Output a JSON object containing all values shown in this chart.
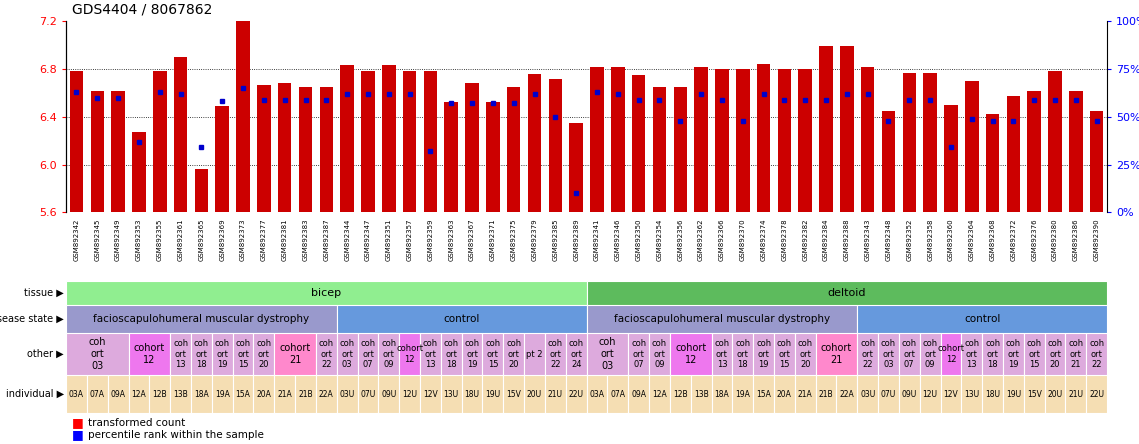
{
  "title": "GDS4404 / 8067862",
  "ylim": [
    5.6,
    7.2
  ],
  "yticks": [
    5.6,
    6.0,
    6.4,
    6.8,
    7.2
  ],
  "y2lim": [
    0,
    100
  ],
  "y2ticks": [
    0,
    25,
    50,
    75,
    100
  ],
  "bar_color": "#CC0000",
  "dot_color": "#0000CC",
  "samples": [
    "GSM892342",
    "GSM892345",
    "GSM892349",
    "GSM892353",
    "GSM892355",
    "GSM892361",
    "GSM892365",
    "GSM892369",
    "GSM892373",
    "GSM892377",
    "GSM892381",
    "GSM892383",
    "GSM892387",
    "GSM892344",
    "GSM892347",
    "GSM892351",
    "GSM892357",
    "GSM892359",
    "GSM892363",
    "GSM892367",
    "GSM892371",
    "GSM892375",
    "GSM892379",
    "GSM892385",
    "GSM892389",
    "GSM892341",
    "GSM892346",
    "GSM892350",
    "GSM892354",
    "GSM892356",
    "GSM892362",
    "GSM892366",
    "GSM892370",
    "GSM892374",
    "GSM892378",
    "GSM892382",
    "GSM892384",
    "GSM892388",
    "GSM892343",
    "GSM892348",
    "GSM892352",
    "GSM892358",
    "GSM892360",
    "GSM892364",
    "GSM892368",
    "GSM892372",
    "GSM892376",
    "GSM892380",
    "GSM892386",
    "GSM892390"
  ],
  "bar_heights": [
    6.78,
    6.62,
    6.62,
    6.27,
    6.78,
    6.9,
    5.96,
    6.49,
    7.2,
    6.67,
    6.68,
    6.65,
    6.65,
    6.83,
    6.78,
    6.83,
    6.78,
    6.78,
    6.52,
    6.68,
    6.52,
    6.65,
    6.76,
    6.72,
    6.35,
    6.82,
    6.82,
    6.75,
    6.65,
    6.65,
    6.82,
    6.8,
    6.8,
    6.84,
    6.8,
    6.8,
    6.99,
    6.99,
    6.82,
    6.45,
    6.77,
    6.77,
    6.5,
    6.7,
    6.42,
    6.57,
    6.62,
    6.78,
    6.62,
    6.45
  ],
  "dot_percentiles": [
    63,
    60,
    60,
    37,
    63,
    62,
    34,
    58,
    65,
    59,
    59,
    59,
    59,
    62,
    62,
    62,
    62,
    32,
    57,
    57,
    57,
    57,
    62,
    50,
    10,
    63,
    62,
    59,
    59,
    48,
    62,
    59,
    48,
    62,
    59,
    59,
    59,
    62,
    62,
    48,
    59,
    59,
    34,
    49,
    48,
    48,
    59,
    59,
    59,
    48
  ],
  "tissue_sections": [
    {
      "label": "bicep",
      "start": 0,
      "end": 25,
      "color": "#90EE90"
    },
    {
      "label": "deltoid",
      "start": 25,
      "end": 50,
      "color": "#5DBB5D"
    }
  ],
  "disease_sections": [
    {
      "label": "facioscapulohumeral muscular dystrophy",
      "start": 0,
      "end": 13,
      "color": "#9999CC"
    },
    {
      "label": "control",
      "start": 13,
      "end": 25,
      "color": "#6699DD"
    },
    {
      "label": "facioscapulohumeral muscular dystrophy",
      "start": 25,
      "end": 38,
      "color": "#9999CC"
    },
    {
      "label": "control",
      "start": 38,
      "end": 50,
      "color": "#6699DD"
    }
  ],
  "cohort_groups": [
    {
      "label": "coh\nort\n03",
      "start": 0,
      "end": 3,
      "color": "#DDAADD"
    },
    {
      "label": "cohort\n12",
      "start": 3,
      "end": 5,
      "color": "#EE77EE"
    },
    {
      "label": "coh\nort\n13",
      "start": 5,
      "end": 6,
      "color": "#DDAADD"
    },
    {
      "label": "coh\nort\n18",
      "start": 6,
      "end": 7,
      "color": "#DDAADD"
    },
    {
      "label": "coh\nort\n19",
      "start": 7,
      "end": 8,
      "color": "#DDAADD"
    },
    {
      "label": "coh\nort\n15",
      "start": 8,
      "end": 9,
      "color": "#DDAADD"
    },
    {
      "label": "coh\nort\n20",
      "start": 9,
      "end": 10,
      "color": "#DDAADD"
    },
    {
      "label": "cohort\n21",
      "start": 10,
      "end": 12,
      "color": "#FF88CC"
    },
    {
      "label": "coh\nort\n22",
      "start": 12,
      "end": 13,
      "color": "#DDAADD"
    },
    {
      "label": "coh\nort\n03",
      "start": 13,
      "end": 14,
      "color": "#DDAADD"
    },
    {
      "label": "coh\nort\n07",
      "start": 14,
      "end": 15,
      "color": "#DDAADD"
    },
    {
      "label": "coh\nort\n09",
      "start": 15,
      "end": 16,
      "color": "#DDAADD"
    },
    {
      "label": "cohort\n12",
      "start": 16,
      "end": 17,
      "color": "#EE77EE"
    },
    {
      "label": "coh\nort\n13",
      "start": 17,
      "end": 18,
      "color": "#DDAADD"
    },
    {
      "label": "coh\nort\n18",
      "start": 18,
      "end": 19,
      "color": "#DDAADD"
    },
    {
      "label": "coh\nort\n19",
      "start": 19,
      "end": 20,
      "color": "#DDAADD"
    },
    {
      "label": "coh\nort\n15",
      "start": 20,
      "end": 21,
      "color": "#DDAADD"
    },
    {
      "label": "coh\nort\n20",
      "start": 21,
      "end": 22,
      "color": "#DDAADD"
    },
    {
      "label": "pt 2",
      "start": 22,
      "end": 23,
      "color": "#DDAADD"
    },
    {
      "label": "coh\nort\n22",
      "start": 23,
      "end": 24,
      "color": "#DDAADD"
    },
    {
      "label": "coh\nort\n24",
      "start": 24,
      "end": 25,
      "color": "#DDAADD"
    },
    {
      "label": "coh\nort\n03",
      "start": 25,
      "end": 27,
      "color": "#DDAADD"
    },
    {
      "label": "coh\nort\n07",
      "start": 27,
      "end": 28,
      "color": "#DDAADD"
    },
    {
      "label": "coh\nort\n09",
      "start": 28,
      "end": 29,
      "color": "#DDAADD"
    },
    {
      "label": "cohort\n12",
      "start": 29,
      "end": 31,
      "color": "#EE77EE"
    },
    {
      "label": "coh\nort\n13",
      "start": 31,
      "end": 32,
      "color": "#DDAADD"
    },
    {
      "label": "coh\nort\n18",
      "start": 32,
      "end": 33,
      "color": "#DDAADD"
    },
    {
      "label": "coh\nort\n19",
      "start": 33,
      "end": 34,
      "color": "#DDAADD"
    },
    {
      "label": "coh\nort\n15",
      "start": 34,
      "end": 35,
      "color": "#DDAADD"
    },
    {
      "label": "coh\nort\n20",
      "start": 35,
      "end": 36,
      "color": "#DDAADD"
    },
    {
      "label": "cohort\n21",
      "start": 36,
      "end": 38,
      "color": "#FF88CC"
    },
    {
      "label": "coh\nort\n22",
      "start": 38,
      "end": 39,
      "color": "#DDAADD"
    },
    {
      "label": "coh\nort\n03",
      "start": 39,
      "end": 40,
      "color": "#DDAADD"
    },
    {
      "label": "coh\nort\n07",
      "start": 40,
      "end": 41,
      "color": "#DDAADD"
    },
    {
      "label": "coh\nort\n09",
      "start": 41,
      "end": 42,
      "color": "#DDAADD"
    },
    {
      "label": "cohort\n12",
      "start": 42,
      "end": 43,
      "color": "#EE77EE"
    },
    {
      "label": "coh\nort\n13",
      "start": 43,
      "end": 44,
      "color": "#DDAADD"
    },
    {
      "label": "coh\nort\n18",
      "start": 44,
      "end": 45,
      "color": "#DDAADD"
    },
    {
      "label": "coh\nort\n19",
      "start": 45,
      "end": 46,
      "color": "#DDAADD"
    },
    {
      "label": "coh\nort\n15",
      "start": 46,
      "end": 47,
      "color": "#DDAADD"
    },
    {
      "label": "coh\nort\n20",
      "start": 47,
      "end": 48,
      "color": "#DDAADD"
    },
    {
      "label": "coh\nort\n21",
      "start": 48,
      "end": 49,
      "color": "#DDAADD"
    },
    {
      "label": "coh\nort\n22",
      "start": 49,
      "end": 50,
      "color": "#DDAADD"
    }
  ],
  "individual_labels": [
    "03A",
    "07A",
    "09A",
    "12A",
    "12B",
    "13B",
    "18A",
    "19A",
    "15A",
    "20A",
    "21A",
    "21B",
    "22A",
    "03U",
    "07U",
    "09U",
    "12U",
    "12V",
    "13U",
    "18U",
    "19U",
    "15V",
    "20U",
    "21U",
    "22U",
    "03A",
    "07A",
    "09A",
    "12A",
    "12B",
    "13B",
    "18A",
    "19A",
    "15A",
    "20A",
    "21A",
    "21B",
    "22A",
    "03U",
    "07U",
    "09U",
    "12U",
    "12V",
    "13U",
    "18U",
    "19U",
    "15V",
    "20U",
    "21U",
    "22U"
  ]
}
